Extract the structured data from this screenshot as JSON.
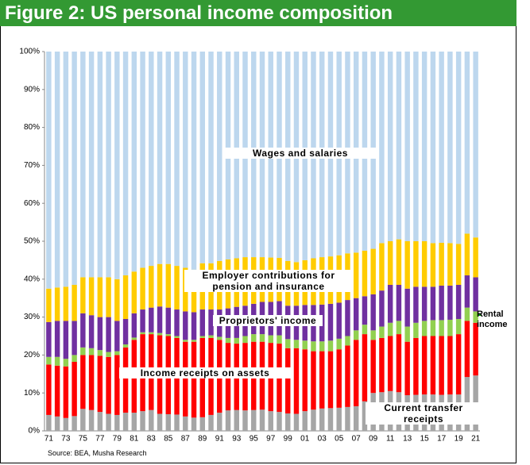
{
  "chart_data": {
    "type": "stacked_bar",
    "title": "Figure 2: US personal income composition",
    "source": "Source: BEA, Musha Research",
    "categories": [
      "71",
      null,
      "73",
      null,
      "75",
      null,
      "77",
      null,
      "79",
      null,
      "81",
      null,
      "83",
      null,
      "85",
      null,
      "87",
      null,
      "89",
      null,
      "91",
      null,
      "93",
      null,
      "95",
      null,
      "97",
      null,
      "99",
      null,
      "01",
      null,
      "03",
      null,
      "05",
      null,
      "07",
      null,
      "09",
      null,
      "11",
      null,
      "13",
      null,
      "15",
      null,
      "17",
      null,
      "19",
      null,
      "21"
    ],
    "ylim": [
      0,
      100
    ],
    "yticks": [
      {
        "value": 0,
        "label": "0%"
      },
      {
        "value": 10,
        "label": "10%"
      },
      {
        "value": 20,
        "label": "20%"
      },
      {
        "value": 30,
        "label": "30%"
      },
      {
        "value": 40,
        "label": "40%"
      },
      {
        "value": 50,
        "label": "50%"
      },
      {
        "value": 60,
        "label": "60%"
      },
      {
        "value": 70,
        "label": "70%"
      },
      {
        "value": 80,
        "label": "80%"
      },
      {
        "value": 90,
        "label": "90%"
      },
      {
        "value": 100,
        "label": "100%"
      }
    ],
    "grid": false,
    "series": [
      {
        "name": "Current transfer receipts",
        "color": "#a6a6a6",
        "values": [
          4.2,
          3.8,
          3.4,
          3.9,
          5.8,
          5.5,
          5.0,
          4.5,
          4.2,
          4.8,
          4.8,
          5.2,
          5.5,
          4.5,
          4.4,
          4.3,
          3.8,
          3.5,
          3.6,
          4.2,
          4.8,
          5.4,
          5.5,
          5.4,
          5.5,
          5.6,
          5.2,
          5.0,
          4.6,
          4.5,
          5.2,
          5.6,
          5.9,
          6.0,
          6.1,
          6.3,
          6.5,
          7.8,
          10.0,
          10.2,
          10.5,
          10.2,
          9.4,
          9.5,
          9.6,
          9.6,
          9.5,
          9.6,
          9.6,
          14.2,
          14.6
        ]
      },
      {
        "name": "Income receipts on assets",
        "color": "#ff0000",
        "values": [
          13.3,
          13.4,
          13.6,
          14.3,
          14.2,
          14.5,
          14.8,
          15.0,
          15.8,
          17.2,
          19.2,
          20.3,
          20.0,
          20.7,
          20.6,
          20.2,
          19.7,
          20.0,
          20.9,
          20.3,
          19.2,
          17.8,
          17.5,
          17.8,
          18.0,
          17.9,
          18.0,
          18.0,
          17.2,
          17.3,
          16.3,
          15.4,
          15.1,
          15.0,
          15.4,
          16.2,
          17.5,
          17.7,
          14.0,
          14.3,
          14.5,
          15.3,
          14.1,
          15.0,
          15.4,
          15.4,
          15.5,
          15.4,
          15.9,
          14.8,
          13.9
        ]
      },
      {
        "name": "Rental income",
        "color": "#92d050",
        "values": [
          2.0,
          2.3,
          2.0,
          1.8,
          2.0,
          1.8,
          1.5,
          1.3,
          1.0,
          0.8,
          0.6,
          0.5,
          0.5,
          0.6,
          0.5,
          0.5,
          0.5,
          0.5,
          0.5,
          0.7,
          0.8,
          1.3,
          1.5,
          1.8,
          2.0,
          2.0,
          2.0,
          2.2,
          2.4,
          2.2,
          2.3,
          2.6,
          2.6,
          2.8,
          2.8,
          2.5,
          2.5,
          2.5,
          2.5,
          3.0,
          3.5,
          3.5,
          4.0,
          4.0,
          4.0,
          4.2,
          4.2,
          4.3,
          4.0,
          3.5,
          3.0
        ]
      },
      {
        "name": "Proprietors' income",
        "color": "#7030a0",
        "values": [
          9.2,
          9.5,
          10.0,
          9.0,
          9.0,
          8.7,
          8.7,
          9.2,
          8.0,
          6.7,
          6.4,
          6.0,
          6.5,
          7.0,
          7.0,
          7.0,
          7.5,
          7.3,
          7.0,
          6.8,
          7.2,
          7.8,
          8.2,
          8.0,
          8.0,
          8.5,
          8.8,
          9.0,
          8.8,
          9.0,
          9.4,
          9.6,
          9.7,
          9.7,
          9.5,
          9.5,
          8.5,
          7.5,
          9.5,
          9.5,
          10.0,
          9.5,
          10.0,
          9.5,
          9.0,
          8.8,
          9.1,
          9.0,
          9.0,
          8.5,
          9.0
        ]
      },
      {
        "name": "Employer contributions for pension and insurance",
        "color": "#ffcc00",
        "values": [
          8.8,
          8.8,
          9.0,
          9.5,
          9.5,
          10.0,
          10.5,
          10.5,
          11.0,
          11.5,
          11.0,
          11.0,
          11.0,
          11.2,
          11.5,
          11.5,
          11.5,
          11.2,
          12.2,
          12.2,
          12.8,
          12.9,
          12.8,
          12.8,
          12.3,
          11.8,
          11.7,
          11.4,
          11.8,
          11.5,
          11.8,
          12.3,
          12.5,
          12.5,
          12.5,
          12.3,
          12.0,
          12.0,
          12.0,
          12.5,
          11.5,
          12.0,
          12.5,
          12.0,
          12.0,
          11.5,
          11.3,
          11.2,
          10.8,
          11.0,
          10.5
        ]
      },
      {
        "name": "Wages and salaries",
        "color": "#bdd7ee",
        "values": [
          62.5,
          62.2,
          62.0,
          61.5,
          59.5,
          59.5,
          59.5,
          59.5,
          60.0,
          59.0,
          58.0,
          57.0,
          56.5,
          56.0,
          56.0,
          56.5,
          57.0,
          57.5,
          55.8,
          55.8,
          55.2,
          54.8,
          54.5,
          54.2,
          54.2,
          54.2,
          54.3,
          54.4,
          55.2,
          55.5,
          55.0,
          54.5,
          54.2,
          54.0,
          53.7,
          53.2,
          53.0,
          52.5,
          52.0,
          50.5,
          50.0,
          49.5,
          50.0,
          50.0,
          50.0,
          50.5,
          50.4,
          50.5,
          50.7,
          48.0,
          49.0
        ]
      }
    ]
  }
}
